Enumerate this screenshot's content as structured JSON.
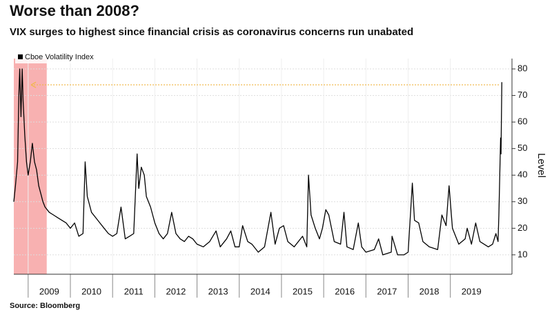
{
  "chart_data": {
    "type": "line",
    "title": "Worse than 2008?",
    "subtitle": "VIX surges to highest since financial crisis as coronavirus concerns run unabated",
    "y_axis_label": "Level",
    "source": "Source: Bloomberg",
    "x": [
      2008.66,
      2008.7,
      2008.75,
      2008.78,
      2008.8,
      2008.83,
      2008.86,
      2008.88,
      2008.92,
      2008.96,
      2009.0,
      2009.05,
      2009.1,
      2009.15,
      2009.2,
      2009.25,
      2009.3,
      2009.35,
      2009.4,
      2009.5,
      2009.6,
      2009.7,
      2009.8,
      2009.9,
      2010.0,
      2010.1,
      2010.2,
      2010.3,
      2010.35,
      2010.4,
      2010.5,
      2010.6,
      2010.7,
      2010.8,
      2010.9,
      2011.0,
      2011.1,
      2011.2,
      2011.3,
      2011.4,
      2011.5,
      2011.58,
      2011.62,
      2011.68,
      2011.75,
      2011.8,
      2011.9,
      2011.95,
      2012.0,
      2012.1,
      2012.2,
      2012.3,
      2012.4,
      2012.5,
      2012.6,
      2012.7,
      2012.8,
      2012.9,
      2013.0,
      2013.15,
      2013.3,
      2013.45,
      2013.55,
      2013.7,
      2013.8,
      2013.9,
      2014.0,
      2014.08,
      2014.2,
      2014.3,
      2014.45,
      2014.6,
      2014.75,
      2014.85,
      2014.95,
      2015.05,
      2015.15,
      2015.3,
      2015.5,
      2015.6,
      2015.64,
      2015.7,
      2015.8,
      2015.9,
      2015.97,
      2016.05,
      2016.12,
      2016.25,
      2016.4,
      2016.48,
      2016.55,
      2016.7,
      2016.82,
      2016.9,
      2017.0,
      2017.2,
      2017.3,
      2017.4,
      2017.6,
      2017.62,
      2017.75,
      2017.9,
      2018.0,
      2018.1,
      2018.15,
      2018.25,
      2018.35,
      2018.5,
      2018.7,
      2018.8,
      2018.9,
      2018.97,
      2019.05,
      2019.2,
      2019.35,
      2019.4,
      2019.5,
      2019.6,
      2019.7,
      2019.8,
      2019.9,
      2020.0,
      2020.08,
      2020.13,
      2020.15,
      2020.17,
      2020.19,
      2020.2,
      2020.22
    ],
    "series": [
      {
        "name": "Cboe Volatility Index",
        "color": "#000000",
        "values": [
          30,
          36,
          45,
          70,
          80,
          62,
          80,
          68,
          55,
          45,
          40,
          45,
          52,
          45,
          42,
          36,
          33,
          30,
          28,
          26,
          25,
          24,
          23,
          22,
          20,
          22,
          17,
          18,
          45,
          32,
          26,
          24,
          22,
          20,
          18,
          17,
          18,
          28,
          16,
          17,
          18,
          48,
          35,
          43,
          40,
          32,
          28,
          25,
          22,
          18,
          16,
          18,
          26,
          18,
          16,
          15,
          17,
          16,
          14,
          13,
          15,
          19,
          13,
          16,
          19,
          13,
          13,
          21,
          15,
          14,
          11,
          13,
          26,
          14,
          20,
          21,
          15,
          13,
          17,
          13,
          40,
          25,
          20,
          16,
          20,
          27,
          25,
          15,
          14,
          26,
          13,
          12,
          22,
          13,
          11,
          12,
          16,
          10,
          11,
          17,
          10,
          10,
          11,
          37,
          23,
          22,
          15,
          13,
          12,
          25,
          21,
          36,
          20,
          14,
          16,
          20,
          14,
          22,
          15,
          14,
          13,
          14,
          18,
          15,
          25,
          40,
          54,
          48,
          75
        ]
      }
    ],
    "xlim": [
      2008.66,
      2020.46
    ],
    "xticks": [
      {
        "value": 2009,
        "label": "2009"
      },
      {
        "value": 2010,
        "label": "2010"
      },
      {
        "value": 2011,
        "label": "2011"
      },
      {
        "value": 2012,
        "label": "2012"
      },
      {
        "value": 2013,
        "label": "2013"
      },
      {
        "value": 2014,
        "label": "2014"
      },
      {
        "value": 2015,
        "label": "2015"
      },
      {
        "value": 2016,
        "label": "2016"
      },
      {
        "value": 2017,
        "label": "2017"
      },
      {
        "value": 2018,
        "label": "2018"
      },
      {
        "value": 2019,
        "label": "2019"
      }
    ],
    "ylim": [
      2.7,
      83.9
    ],
    "yticks": [
      10,
      20,
      30,
      40,
      50,
      60,
      70,
      80
    ],
    "grid": true,
    "legend": "top-left",
    "shaded": {
      "x": [
        2008.66,
        2009.44
      ],
      "color": "#f7a3a3"
    },
    "reference_line": {
      "value": 74,
      "x": [
        2009.07,
        2020.18
      ],
      "color": "#f0b84a"
    }
  }
}
